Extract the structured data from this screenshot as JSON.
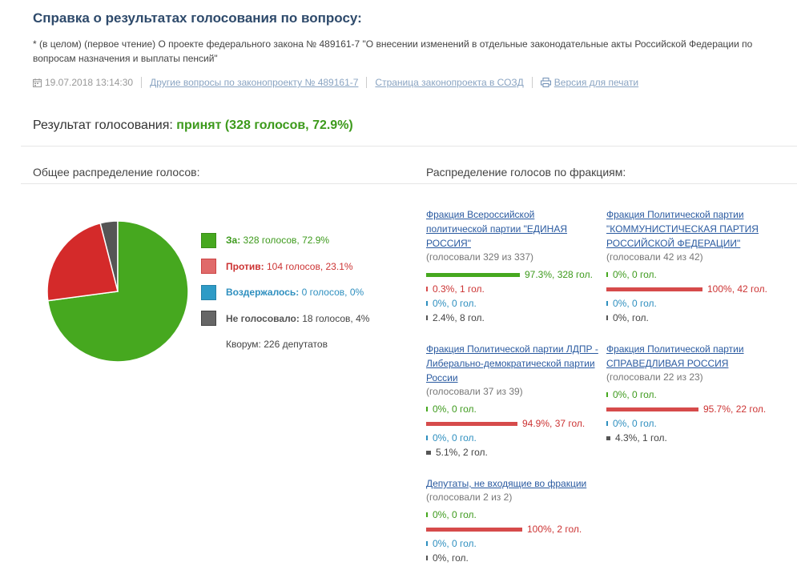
{
  "header": {
    "title": "Справка о результатах голосования по вопросу:",
    "subtitle": "* (в целом) (первое чтение) О проекте федерального закона № 489161-7 \"О внесении изменений в отдельные законодательные акты Российской Федерации по вопросам назначения и выплаты пенсий\"",
    "date": "19.07.2018 13:14:30",
    "links": {
      "other_questions": "Другие вопросы по законопроекту № 489161-7",
      "sozd_page": "Страница законопроекта в СОЗД",
      "print_version": "Версия для печати"
    }
  },
  "result": {
    "label": "Результат голосования:",
    "value": "принят (328 голосов, 72.9%)"
  },
  "overall": {
    "heading": "Общее распределение голосов:",
    "legend": [
      {
        "label": "За:",
        "detail": "328 голосов, 72.9%",
        "color": "#46a81f",
        "value": 328
      },
      {
        "label": "Против:",
        "detail": "104 голосов, 23.1%",
        "color": "#d42a2a",
        "value": 104
      },
      {
        "label": "Воздержалось:",
        "detail": "0 голосов, 0%",
        "color": "#2e8fbf",
        "value": 0
      },
      {
        "label": "Не голосовало:",
        "detail": "18 голосов, 4%",
        "color": "#555555",
        "value": 18
      }
    ],
    "quorum": "Кворум: 226 депутатов"
  },
  "factions_heading": "Распределение голосов по фракциям:",
  "factions": [
    {
      "name": "Фракция Всероссийской политической партии \"ЕДИНАЯ РОССИЯ\"",
      "voted": "(голосовали 329 из 337)",
      "rows": [
        {
          "pct": 97.3,
          "text": "97.3%, 328 гол."
        },
        {
          "pct": 0.3,
          "text": "0.3%, 1 гол."
        },
        {
          "pct": 0,
          "text": "0%, 0 гол."
        },
        {
          "pct": 2.4,
          "text": "2.4%, 8 гол."
        }
      ]
    },
    {
      "name": "Фракция Политической партии \"КОММУНИСТИЧЕСКАЯ ПАРТИЯ РОССИЙСКОЙ ФЕДЕРАЦИИ\"",
      "voted": "(голосовали 42 из 42)",
      "rows": [
        {
          "pct": 0,
          "text": "0%, 0 гол."
        },
        {
          "pct": 100,
          "text": "100%, 42 гол."
        },
        {
          "pct": 0,
          "text": "0%, 0 гол."
        },
        {
          "pct": 0,
          "text": "0%, гол."
        }
      ]
    },
    {
      "name": "Фракция Политической партии ЛДПР - Либерально-демократической партии России",
      "voted": "(голосовали 37 из 39)",
      "rows": [
        {
          "pct": 0,
          "text": "0%, 0 гол."
        },
        {
          "pct": 94.9,
          "text": "94.9%, 37 гол."
        },
        {
          "pct": 0,
          "text": "0%, 0 гол."
        },
        {
          "pct": 5.1,
          "text": "5.1%, 2 гол."
        }
      ]
    },
    {
      "name": "Фракция Политической партии СПРАВЕДЛИВАЯ РОССИЯ",
      "voted": "(голосовали 22 из 23)",
      "rows": [
        {
          "pct": 0,
          "text": "0%, 0 гол."
        },
        {
          "pct": 95.7,
          "text": "95.7%, 22 гол."
        },
        {
          "pct": 0,
          "text": "0%, 0 гол."
        },
        {
          "pct": 4.3,
          "text": "4.3%, 1 гол."
        }
      ]
    },
    {
      "name": "Депутаты, не входящие во фракции",
      "voted": "(голосовали 2 из 2)",
      "rows": [
        {
          "pct": 0,
          "text": "0%, 0 гол."
        },
        {
          "pct": 100,
          "text": "100%, 2 гол."
        },
        {
          "pct": 0,
          "text": "0%, 0 гол."
        },
        {
          "pct": 0,
          "text": "0%, гол."
        }
      ]
    }
  ],
  "chart_data": {
    "type": "pie",
    "categories": [
      "За",
      "Против",
      "Воздержалось",
      "Не голосовало"
    ],
    "values": [
      328,
      104,
      0,
      18
    ],
    "colors": [
      "#46a81f",
      "#d42a2a",
      "#2e8fbf",
      "#555555"
    ]
  }
}
